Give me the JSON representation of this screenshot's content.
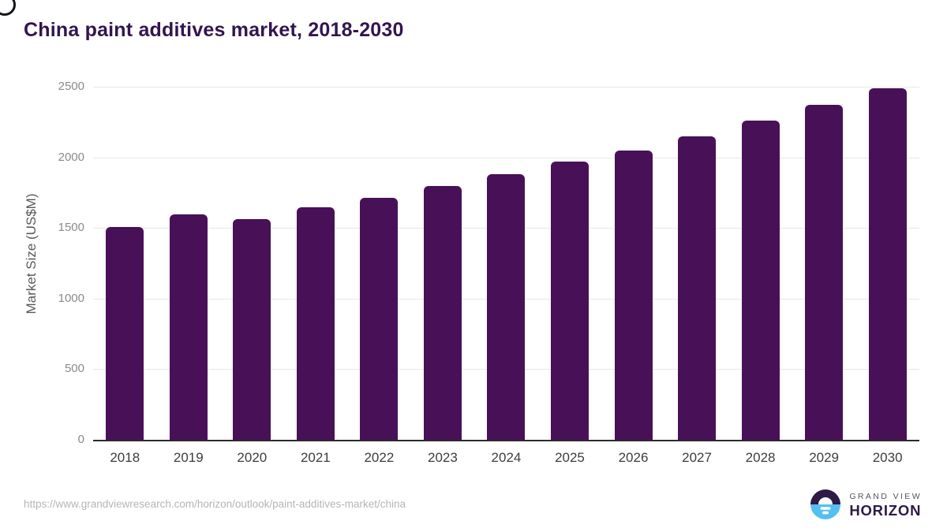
{
  "title": "China paint additives market, 2018-2030",
  "source_url": "https://www.grandviewresearch.com/horizon/outlook/paint-additives-market/china",
  "logo": {
    "top": "GRAND VIEW",
    "bottom": "HORIZON"
  },
  "colors": {
    "bar": "#481157",
    "title": "#32154f",
    "grid": "#e7e7e7",
    "axis_line": "#2b2b2b",
    "tick_label": "#8a8a8a",
    "x_label": "#3d3d3d",
    "y_axis_title": "#595959",
    "url_text": "#b5b5b5",
    "logo_purple": "#2e1a47",
    "logo_blue": "#54c0ef"
  },
  "chart_data": {
    "type": "bar",
    "title": "China paint additives market, 2018-2030",
    "categories": [
      "2018",
      "2019",
      "2020",
      "2021",
      "2022",
      "2023",
      "2024",
      "2025",
      "2026",
      "2027",
      "2028",
      "2029",
      "2030"
    ],
    "values": [
      1505,
      1595,
      1565,
      1645,
      1715,
      1795,
      1880,
      1970,
      2050,
      2150,
      2260,
      2370,
      2490
    ],
    "xlabel": "",
    "ylabel": "Market Size (US$M)",
    "ylim": [
      0,
      2500
    ],
    "yticks": [
      0,
      500,
      1000,
      1500,
      2000,
      2500
    ],
    "grid": true,
    "legend": false
  }
}
